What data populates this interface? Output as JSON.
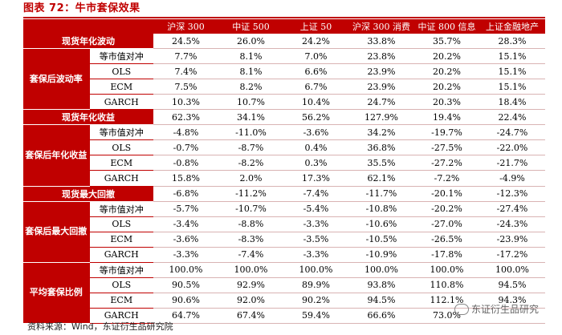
{
  "title": "图表 72：牛市套保效果",
  "columns": [
    "沪深 300",
    "中证 500",
    "上证 50",
    "沪深 300 消费",
    "中证 800 信息",
    "上证金融地产"
  ],
  "sections": [
    {
      "label": "现货年化波动",
      "type": "single",
      "values": [
        "24.5%",
        "26.0%",
        "24.2%",
        "33.8%",
        "35.7%",
        "28.3%"
      ]
    },
    {
      "label": "套保后波动率",
      "type": "group",
      "rows": [
        {
          "method": "等市值对冲",
          "values": [
            "7.7%",
            "8.1%",
            "7.0%",
            "23.8%",
            "20.2%",
            "15.1%"
          ]
        },
        {
          "method": "OLS",
          "values": [
            "7.4%",
            "8.1%",
            "6.6%",
            "23.9%",
            "20.2%",
            "15.1%"
          ]
        },
        {
          "method": "ECM",
          "values": [
            "7.5%",
            "8.2%",
            "6.7%",
            "23.9%",
            "20.2%",
            "15.1%"
          ]
        },
        {
          "method": "GARCH",
          "values": [
            "10.3%",
            "10.7%",
            "10.4%",
            "24.7%",
            "20.3%",
            "18.4%"
          ]
        }
      ]
    },
    {
      "label": "现货年化收益",
      "type": "single",
      "values": [
        "62.3%",
        "34.1%",
        "56.2%",
        "127.9%",
        "19.4%",
        "22.4%"
      ]
    },
    {
      "label": "套保后年化收益",
      "type": "group",
      "rows": [
        {
          "method": "等市值对冲",
          "values": [
            "-4.8%",
            "-11.0%",
            "-3.6%",
            "34.2%",
            "-19.7%",
            "-24.7%"
          ]
        },
        {
          "method": "OLS",
          "values": [
            "-0.7%",
            "-8.7%",
            "0.4%",
            "36.8%",
            "-27.5%",
            "-22.0%"
          ]
        },
        {
          "method": "ECM",
          "values": [
            "-0.8%",
            "-8.2%",
            "0.3%",
            "35.5%",
            "-27.2%",
            "-21.7%"
          ]
        },
        {
          "method": "GARCH",
          "values": [
            "15.8%",
            "2.0%",
            "17.3%",
            "62.1%",
            "-7.2%",
            "-4.9%"
          ]
        }
      ]
    },
    {
      "label": "现货最大回撤",
      "type": "single",
      "values": [
        "-6.8%",
        "-11.2%",
        "-7.4%",
        "-11.7%",
        "-20.1%",
        "-12.3%"
      ]
    },
    {
      "label": "套保后最大回撤",
      "type": "group",
      "rows": [
        {
          "method": "等市值对冲",
          "values": [
            "-5.7%",
            "-10.7%",
            "-5.4%",
            "-10.8%",
            "-20.2%",
            "-27.4%"
          ]
        },
        {
          "method": "OLS",
          "values": [
            "-3.4%",
            "-8.8%",
            "-3.3%",
            "-10.6%",
            "-27.0%",
            "-24.3%"
          ]
        },
        {
          "method": "ECM",
          "values": [
            "-3.6%",
            "-8.3%",
            "-3.5%",
            "-10.5%",
            "-26.5%",
            "-23.9%"
          ]
        },
        {
          "method": "GARCH",
          "values": [
            "-3.3%",
            "-7.4%",
            "-3.3%",
            "-10.9%",
            "-17.8%",
            "-17.2%"
          ]
        }
      ]
    },
    {
      "label": "平均套保比例",
      "type": "group",
      "rows": [
        {
          "method": "等市值对冲",
          "values": [
            "100.0%",
            "100.0%",
            "100.0%",
            "100.0%",
            "100.0%",
            "100.0%"
          ]
        },
        {
          "method": "OLS",
          "values": [
            "90.5%",
            "92.9%",
            "89.9%",
            "93.8%",
            "110.8%",
            "94.5%"
          ]
        },
        {
          "method": "ECM",
          "values": [
            "90.6%",
            "92.0%",
            "90.2%",
            "94.5%",
            "112.1%",
            "94.3%"
          ]
        },
        {
          "method": "GARCH",
          "values": [
            "64.7%",
            "67.4%",
            "59.4%",
            "66.6%",
            "73.0%",
            ""
          ]
        }
      ]
    }
  ],
  "source": "资料来源：Wind，东证衍生品研究院",
  "watermark": "东证衍生品研究",
  "colors": {
    "accent": "#c00000"
  }
}
